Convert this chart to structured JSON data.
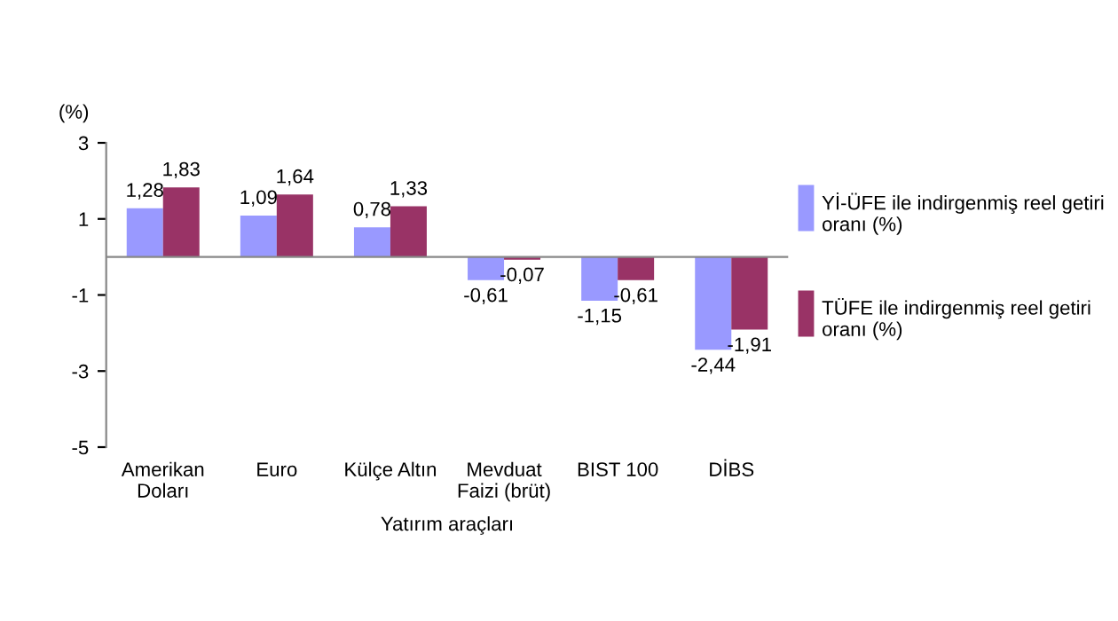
{
  "chart_data": {
    "type": "bar",
    "ylabel": "(%)",
    "xlabel": "Yatırım araçları",
    "categories": [
      "Amerikan\nDoları",
      "Euro",
      "Külçe Altın",
      "Mevduat\nFaizi (brüt)",
      "BIST 100",
      "DİBS"
    ],
    "series": [
      {
        "name": "Yİ-ÜFE ile indirgenmiş reel getiri oranı (%)",
        "color": "#9999ff",
        "values": [
          1.28,
          1.09,
          0.78,
          -0.61,
          -1.15,
          -2.44
        ],
        "value_labels": [
          "1,28",
          "1,09",
          "0,78",
          "-0,61",
          "-1,15",
          "-2,44"
        ]
      },
      {
        "name": "TÜFE ile indirgenmiş reel getiri oranı (%)",
        "color": "#993366",
        "values": [
          1.83,
          1.64,
          1.33,
          -0.07,
          -0.61,
          -1.91
        ],
        "value_labels": [
          "1,83",
          "1,64",
          "1,33",
          "-0,07",
          "-0,61",
          "-1,91"
        ]
      }
    ],
    "ylim": [
      -5,
      3
    ],
    "yticks": [
      {
        "value": 3,
        "label": "3"
      },
      {
        "value": 1,
        "label": "1"
      },
      {
        "value": -1,
        "label": "-1"
      },
      {
        "value": -3,
        "label": "-3"
      },
      {
        "value": -5,
        "label": "-5"
      }
    ],
    "grid": false,
    "legend": "right"
  }
}
